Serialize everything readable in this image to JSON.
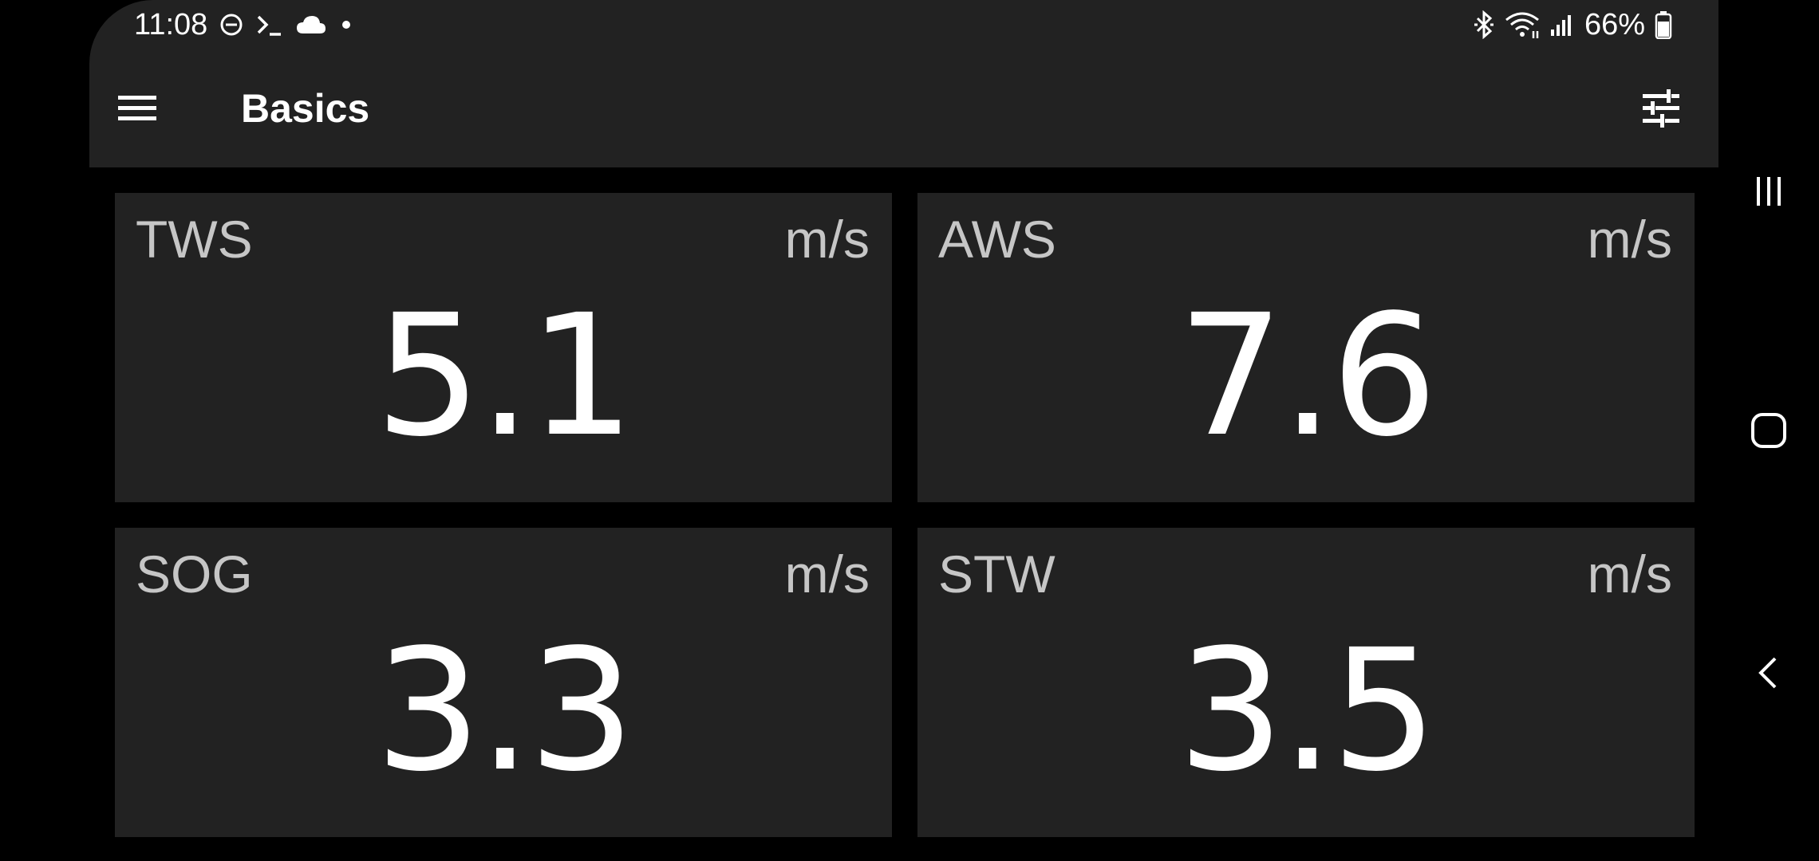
{
  "status_bar": {
    "time": "11:08",
    "left_icons": [
      "do-not-disturb-icon",
      "terminal-icon",
      "cloud-icon",
      "dot-icon"
    ],
    "right_icons": [
      "bluetooth-icon",
      "wifi-icon",
      "signal-icon"
    ],
    "battery": "66%"
  },
  "app_bar": {
    "title": "Basics",
    "menu_icon": "hamburger-menu-icon",
    "settings_icon": "tune-icon"
  },
  "tiles": [
    {
      "label": "TWS",
      "unit": "m/s",
      "value": "5.1"
    },
    {
      "label": "AWS",
      "unit": "m/s",
      "value": "7.6"
    },
    {
      "label": "SOG",
      "unit": "m/s",
      "value": "3.3"
    },
    {
      "label": "STW",
      "unit": "m/s",
      "value": "3.5"
    }
  ],
  "nav_bar": {
    "buttons": [
      "recent-apps-icon",
      "home-icon",
      "back-icon"
    ]
  },
  "colors": {
    "background": "#000000",
    "surface": "#222222",
    "label_text": "#c6c6c6",
    "value_text": "#ffffff"
  }
}
